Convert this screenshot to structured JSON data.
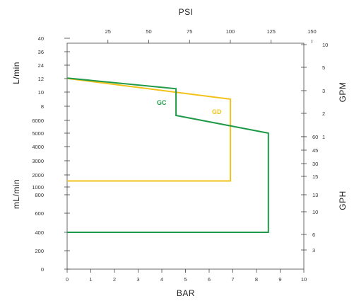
{
  "chart_data": {
    "type": "line",
    "axes": {
      "top": {
        "label": "PSI",
        "ticks": [
          "25",
          "50",
          "75",
          "100",
          "125",
          "150"
        ]
      },
      "bottom": {
        "label": "BAR",
        "ticks": [
          "0",
          "1",
          "2",
          "3",
          "4",
          "5",
          "6",
          "7",
          "8",
          "9",
          "10"
        ]
      },
      "left_upper": {
        "label": "L/min",
        "ticks": [
          "40",
          "36",
          "24",
          "12",
          "10",
          "8"
        ]
      },
      "left_lower": {
        "label": "mL/min",
        "ticks": [
          "6000",
          "5000",
          "4000",
          "3000",
          "2000",
          "1000",
          "800",
          "600",
          "400",
          "200",
          "0"
        ]
      },
      "right_upper": {
        "label": "GPM",
        "ticks": [
          "10",
          "5",
          "3",
          "2",
          "1"
        ]
      },
      "right_lower": {
        "label": "GPH",
        "ticks": [
          "60",
          "45",
          "30",
          "15",
          "13",
          "10",
          "6",
          "3"
        ]
      }
    },
    "series": [
      {
        "name": "GC",
        "color": "#1f9a48",
        "points": [
          {
            "bar": 0,
            "flow": "12.5 L/min"
          },
          {
            "bar": 4.6,
            "flow": "10.5 L/min"
          },
          {
            "bar": 4.6,
            "flow": "7000 mL/min"
          },
          {
            "bar": 8.5,
            "flow": "5000 mL/min"
          },
          {
            "bar": 8.5,
            "flow": "400 mL/min"
          },
          {
            "bar": 0,
            "flow": "400 mL/min"
          }
        ]
      },
      {
        "name": "GD",
        "color": "#f2c21b",
        "points": [
          {
            "bar": 0,
            "flow": "12.2 L/min"
          },
          {
            "bar": 6.9,
            "flow": "9 L/min"
          },
          {
            "bar": 6.9,
            "flow": "1500 mL/min"
          },
          {
            "bar": 0,
            "flow": "1500 mL/min"
          }
        ]
      }
    ]
  }
}
